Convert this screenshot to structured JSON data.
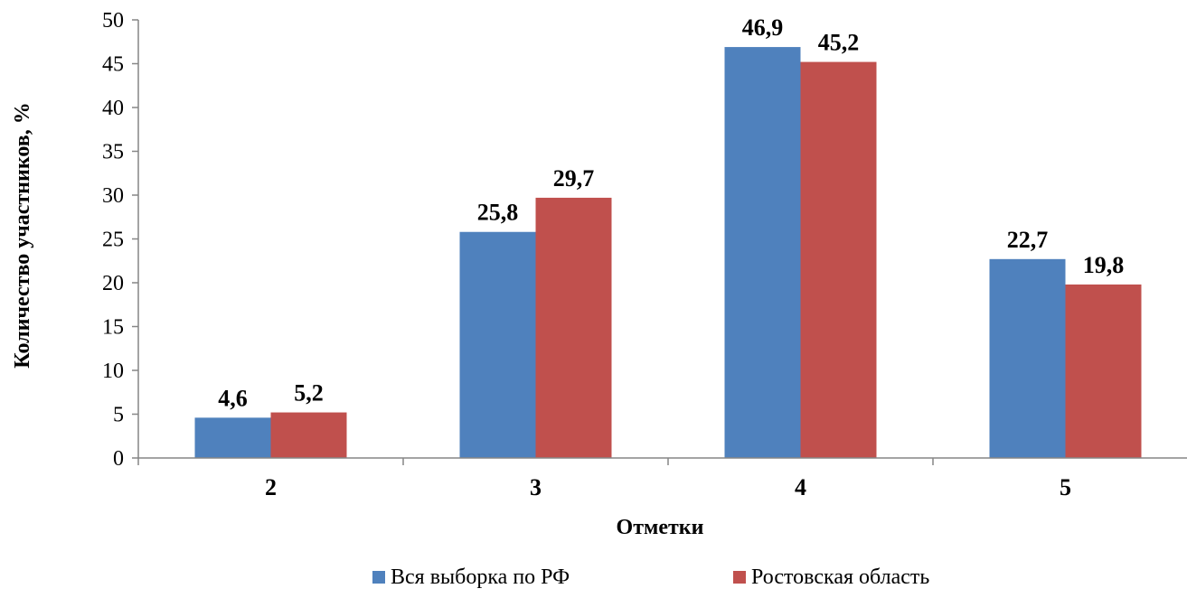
{
  "chart_data": {
    "type": "bar",
    "categories": [
      "2",
      "3",
      "4",
      "5"
    ],
    "series": [
      {
        "name": "Вся выборка по РФ",
        "values": [
          4.6,
          25.8,
          46.9,
          22.7
        ],
        "labels": [
          "4,6",
          "25,8",
          "46,9",
          "22,7"
        ],
        "color": "#4F81BD"
      },
      {
        "name": "Ростовская область",
        "values": [
          5.2,
          29.7,
          45.2,
          19.8
        ],
        "labels": [
          "5,2",
          "29,7",
          "45,2",
          "19,8"
        ],
        "color": "#C0504D"
      }
    ],
    "title": "",
    "xlabel": "Отметки",
    "ylabel": "Количество участников, %",
    "ylim": [
      0,
      50
    ],
    "yticks": [
      0,
      5,
      10,
      15,
      20,
      25,
      30,
      35,
      40,
      45,
      50
    ],
    "ytick_labels": [
      "0",
      "5",
      "10",
      "15",
      "20",
      "25",
      "30",
      "35",
      "40",
      "45",
      "50"
    ],
    "grid": false,
    "legend_position": "bottom"
  }
}
